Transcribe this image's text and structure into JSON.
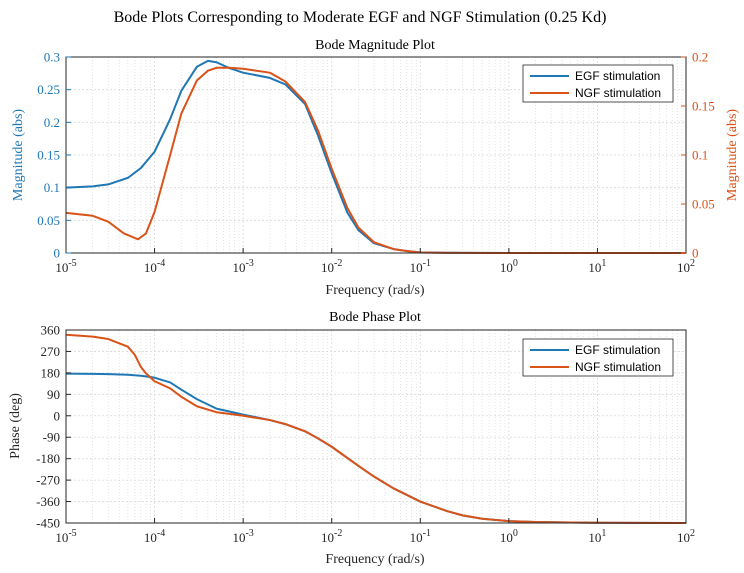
{
  "figure_title": "Bode Plots Corresponding to Moderate EGF and NGF Stimulation (0.25 Kd)",
  "colors": {
    "egf": "#1f77b4",
    "ngf": "#d95319",
    "axis": "#262626",
    "grid": "#d9d9d9"
  },
  "chart_data": [
    {
      "type": "line",
      "title": "Bode Magnitude Plot",
      "xlabel": "Frequency (rad/s)",
      "xscale": "log",
      "xlim": [
        1e-05,
        100
      ],
      "x_ticks": [
        "10",
        "10",
        "10",
        "10",
        "10",
        "10",
        "10",
        "10"
      ],
      "x_tick_exps": [
        "-5",
        "-4",
        "-3",
        "-2",
        "-1",
        "0",
        "1",
        "2"
      ],
      "ylabel_left": "Magnitude (abs)",
      "ylim_left": [
        0,
        0.3
      ],
      "y_ticks_left": [
        "0",
        "0.05",
        "0.1",
        "0.15",
        "0.2",
        "0.25",
        "0.3"
      ],
      "ylabel_right": "Magnitude (abs)",
      "ylim_right": [
        0,
        0.2
      ],
      "y_ticks_right": [
        "0",
        "0.05",
        "0.1",
        "0.15",
        "0.2"
      ],
      "grid": true,
      "legend_position": "top-right",
      "series": [
        {
          "name": "EGF stimulation",
          "axis": "left",
          "points": [
            [
              1e-05,
              0.1
            ],
            [
              2e-05,
              0.102
            ],
            [
              3e-05,
              0.105
            ],
            [
              5e-05,
              0.115
            ],
            [
              7e-05,
              0.13
            ],
            [
              0.0001,
              0.155
            ],
            [
              0.00015,
              0.205
            ],
            [
              0.0002,
              0.248
            ],
            [
              0.0003,
              0.285
            ],
            [
              0.0004,
              0.294
            ],
            [
              0.0005,
              0.292
            ],
            [
              0.0007,
              0.283
            ],
            [
              0.001,
              0.276
            ],
            [
              0.002,
              0.268
            ],
            [
              0.003,
              0.258
            ],
            [
              0.005,
              0.228
            ],
            [
              0.007,
              0.18
            ],
            [
              0.01,
              0.122
            ],
            [
              0.015,
              0.062
            ],
            [
              0.02,
              0.035
            ],
            [
              0.03,
              0.015
            ],
            [
              0.05,
              0.006
            ],
            [
              0.07,
              0.003
            ],
            [
              0.1,
              0.001
            ],
            [
              0.2,
              0.0003
            ],
            [
              1,
              0.0
            ],
            [
              100,
              0.0
            ]
          ]
        },
        {
          "name": "NGF stimulation",
          "axis": "right",
          "points": [
            [
              1e-05,
              0.041
            ],
            [
              2e-05,
              0.038
            ],
            [
              3e-05,
              0.032
            ],
            [
              4.5e-05,
              0.02
            ],
            [
              6.5e-05,
              0.014
            ],
            [
              8e-05,
              0.02
            ],
            [
              0.0001,
              0.042
            ],
            [
              0.00015,
              0.1
            ],
            [
              0.0002,
              0.142
            ],
            [
              0.0003,
              0.176
            ],
            [
              0.0004,
              0.186
            ],
            [
              0.0005,
              0.189
            ],
            [
              0.0007,
              0.189
            ],
            [
              0.001,
              0.188
            ],
            [
              0.002,
              0.184
            ],
            [
              0.003,
              0.175
            ],
            [
              0.005,
              0.154
            ],
            [
              0.007,
              0.125
            ],
            [
              0.01,
              0.086
            ],
            [
              0.015,
              0.046
            ],
            [
              0.02,
              0.026
            ],
            [
              0.03,
              0.011
            ],
            [
              0.05,
              0.004
            ],
            [
              0.07,
              0.002
            ],
            [
              0.1,
              0.0005
            ],
            [
              0.2,
              0.0001
            ],
            [
              1,
              0.0
            ],
            [
              100,
              0.0
            ]
          ]
        }
      ]
    },
    {
      "type": "line",
      "title": "Bode Phase Plot",
      "xlabel": "Frequency (rad/s)",
      "xscale": "log",
      "xlim": [
        1e-05,
        100
      ],
      "x_ticks": [
        "10",
        "10",
        "10",
        "10",
        "10",
        "10",
        "10",
        "10"
      ],
      "x_tick_exps": [
        "-5",
        "-4",
        "-3",
        "-2",
        "-1",
        "0",
        "1",
        "2"
      ],
      "ylabel": "Phase (deg)",
      "ylim": [
        -450,
        360
      ],
      "y_ticks": [
        "360",
        "270",
        "180",
        "90",
        "0",
        "-90",
        "-180",
        "-270",
        "-360",
        "-450"
      ],
      "grid": true,
      "legend_position": "top-right",
      "series": [
        {
          "name": "EGF stimulation",
          "points": [
            [
              1e-05,
              177
            ],
            [
              2e-05,
              176
            ],
            [
              3e-05,
              175
            ],
            [
              5e-05,
              172
            ],
            [
              7e-05,
              168
            ],
            [
              0.0001,
              160
            ],
            [
              0.00015,
              140
            ],
            [
              0.0002,
              110
            ],
            [
              0.0003,
              70
            ],
            [
              0.0005,
              30
            ],
            [
              0.0007,
              18
            ],
            [
              0.001,
              5
            ],
            [
              0.002,
              -18
            ],
            [
              0.003,
              -35
            ],
            [
              0.005,
              -65
            ],
            [
              0.007,
              -95
            ],
            [
              0.01,
              -130
            ],
            [
              0.02,
              -210
            ],
            [
              0.03,
              -255
            ],
            [
              0.05,
              -305
            ],
            [
              0.1,
              -360
            ],
            [
              0.2,
              -400
            ],
            [
              0.3,
              -418
            ],
            [
              0.5,
              -432
            ],
            [
              1,
              -442
            ],
            [
              2,
              -446
            ],
            [
              5,
              -448
            ],
            [
              10,
              -449
            ],
            [
              100,
              -450
            ]
          ]
        },
        {
          "name": "NGF stimulation",
          "points": [
            [
              1e-05,
              340
            ],
            [
              2e-05,
              332
            ],
            [
              3e-05,
              322
            ],
            [
              5e-05,
              290
            ],
            [
              6e-05,
              255
            ],
            [
              7e-05,
              205
            ],
            [
              8e-05,
              178
            ],
            [
              0.0001,
              145
            ],
            [
              0.00015,
              115
            ],
            [
              0.0002,
              80
            ],
            [
              0.0003,
              40
            ],
            [
              0.0005,
              15
            ],
            [
              0.0007,
              8
            ],
            [
              0.001,
              0
            ],
            [
              0.002,
              -18
            ],
            [
              0.003,
              -35
            ],
            [
              0.005,
              -65
            ],
            [
              0.007,
              -95
            ],
            [
              0.01,
              -130
            ],
            [
              0.02,
              -210
            ],
            [
              0.03,
              -255
            ],
            [
              0.05,
              -305
            ],
            [
              0.1,
              -360
            ],
            [
              0.2,
              -400
            ],
            [
              0.3,
              -418
            ],
            [
              0.5,
              -432
            ],
            [
              1,
              -442
            ],
            [
              2,
              -446
            ],
            [
              5,
              -448
            ],
            [
              10,
              -449
            ],
            [
              100,
              -450
            ]
          ]
        }
      ]
    }
  ]
}
